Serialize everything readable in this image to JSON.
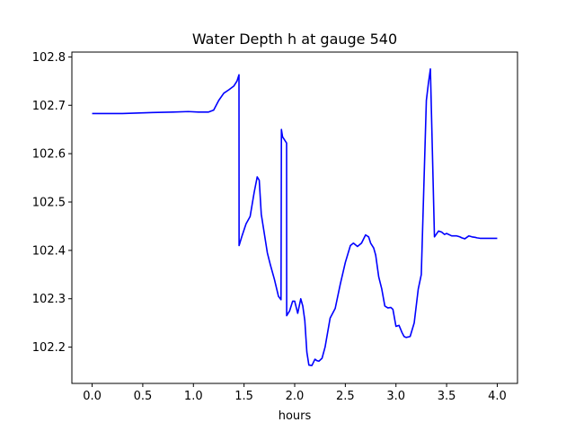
{
  "chart_data": {
    "type": "line",
    "title": "Water Depth h at gauge 540",
    "xlabel": "hours",
    "ylabel": "",
    "xlim": [
      -0.2,
      4.2
    ],
    "ylim": [
      102.125,
      102.81
    ],
    "grid": false,
    "x_ticks": [
      0.0,
      0.5,
      1.0,
      1.5,
      2.0,
      2.5,
      3.0,
      3.5,
      4.0
    ],
    "x_tick_labels": [
      "0.0",
      "0.5",
      "1.0",
      "1.5",
      "2.0",
      "2.5",
      "3.0",
      "3.5",
      "4.0"
    ],
    "y_ticks": [
      102.2,
      102.3,
      102.4,
      102.5,
      102.6,
      102.7,
      102.8
    ],
    "y_tick_labels": [
      "102.2",
      "102.3",
      "102.4",
      "102.5",
      "102.6",
      "102.7",
      "102.8"
    ],
    "series": [
      {
        "color": "#0000ff",
        "x": [
          0.0,
          0.3,
          0.6,
          0.8,
          0.95,
          1.05,
          1.15,
          1.2,
          1.25,
          1.3,
          1.35,
          1.4,
          1.43,
          1.45,
          1.451,
          1.48,
          1.52,
          1.56,
          1.6,
          1.63,
          1.65,
          1.67,
          1.7,
          1.73,
          1.76,
          1.8,
          1.84,
          1.865,
          1.869,
          1.88,
          1.92,
          1.921,
          1.95,
          1.98,
          2.0,
          2.03,
          2.06,
          2.08,
          2.1,
          2.12,
          2.14,
          2.17,
          2.2,
          2.22,
          2.24,
          2.27,
          2.3,
          2.35,
          2.4,
          2.45,
          2.5,
          2.55,
          2.58,
          2.62,
          2.66,
          2.7,
          2.73,
          2.75,
          2.78,
          2.8,
          2.83,
          2.86,
          2.89,
          2.92,
          2.95,
          2.97,
          3.0,
          3.03,
          3.06,
          3.08,
          3.1,
          3.14,
          3.18,
          3.22,
          3.25,
          3.3,
          3.32,
          3.34,
          3.38,
          3.42,
          3.45,
          3.48,
          3.5,
          3.55,
          3.6,
          3.63,
          3.65,
          3.68,
          3.72,
          3.75,
          3.78,
          3.781,
          3.8,
          3.83,
          3.85,
          3.851,
          3.87,
          3.9,
          3.95,
          4.0
        ],
        "y": [
          102.683,
          102.683,
          102.685,
          102.686,
          102.687,
          102.686,
          102.686,
          102.69,
          102.71,
          102.725,
          102.732,
          102.74,
          102.75,
          102.763,
          102.41,
          102.43,
          102.455,
          102.47,
          102.52,
          102.552,
          102.545,
          102.475,
          102.435,
          102.395,
          102.37,
          102.34,
          102.305,
          102.298,
          102.65,
          102.635,
          102.622,
          102.265,
          102.275,
          102.295,
          102.295,
          102.27,
          102.3,
          102.285,
          102.255,
          102.19,
          102.163,
          102.162,
          102.175,
          102.172,
          102.171,
          102.177,
          102.2,
          102.26,
          102.28,
          102.33,
          102.375,
          102.41,
          102.415,
          102.408,
          102.415,
          102.432,
          102.428,
          102.415,
          102.405,
          102.39,
          102.345,
          102.32,
          102.285,
          102.281,
          102.282,
          102.278,
          102.243,
          102.245,
          102.23,
          102.222,
          102.22,
          102.222,
          102.25,
          102.32,
          102.35,
          102.71,
          102.745,
          102.775,
          102.428,
          102.44,
          102.438,
          102.433,
          102.435,
          102.43,
          102.43,
          102.428,
          102.426,
          102.424,
          102.43,
          102.428,
          102.427,
          102.427,
          102.426,
          102.425,
          102.425,
          102.425,
          102.425,
          102.425,
          102.425,
          102.425
        ]
      }
    ]
  }
}
